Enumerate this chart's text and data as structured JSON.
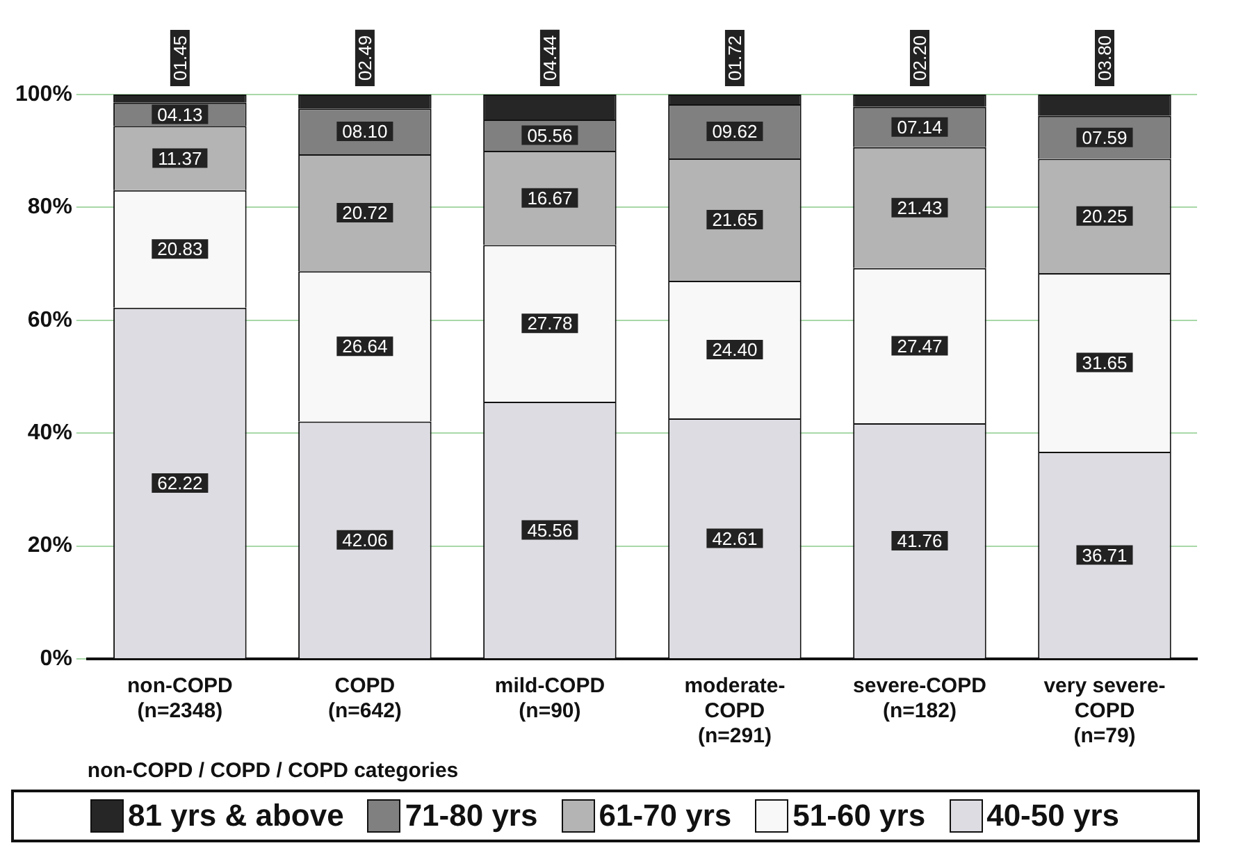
{
  "chart_data": {
    "type": "bar",
    "stacked": true,
    "xlabel": "non-COPD / COPD / COPD categories",
    "categories": [
      "non-COPD\n(n=2348)",
      "COPD\n(n=642)",
      "mild-COPD\n(n=90)",
      "moderate-\nCOPD\n(n=291)",
      "severe-COPD\n(n=182)",
      "very severe-\nCOPD\n(n=79)"
    ],
    "series": [
      {
        "name": "40-50 yrs",
        "color": "#dcdce2",
        "values": [
          62.22,
          42.06,
          45.56,
          42.61,
          41.76,
          36.71
        ],
        "value_labels": [
          "62.22",
          "42.06",
          "45.56",
          "42.61",
          "41.76",
          "36.71"
        ]
      },
      {
        "name": "51-60 yrs",
        "color": "#f8f8f8",
        "values": [
          20.83,
          26.64,
          27.78,
          24.4,
          27.47,
          31.65
        ],
        "value_labels": [
          "20.83",
          "26.64",
          "27.78",
          "24.40",
          "27.47",
          "31.65"
        ]
      },
      {
        "name": "61-70 yrs",
        "color": "#b4b4b4",
        "values": [
          11.37,
          20.72,
          16.67,
          21.65,
          21.43,
          20.25
        ],
        "value_labels": [
          "11.37",
          "20.72",
          "16.67",
          "21.65",
          "21.43",
          "20.25"
        ]
      },
      {
        "name": "71-80 yrs",
        "color": "#808080",
        "values": [
          4.13,
          8.1,
          5.56,
          9.62,
          7.14,
          7.59
        ],
        "value_labels": [
          "04.13",
          "08.10",
          "05.56",
          "09.62",
          "07.14",
          "07.59"
        ]
      },
      {
        "name": "81 yrs & above",
        "color": "#262626",
        "values": [
          1.45,
          2.49,
          4.44,
          1.72,
          2.2,
          3.8
        ],
        "value_labels": [
          "01.45",
          "02.49",
          "04.44",
          "01.72",
          "02.20",
          "03.80"
        ]
      }
    ],
    "ylim": [
      0,
      100
    ],
    "yticks": [
      {
        "value": 0,
        "label": "0%"
      },
      {
        "value": 20,
        "label": "20%"
      },
      {
        "value": 40,
        "label": "40%"
      },
      {
        "value": 60,
        "label": "60%"
      },
      {
        "value": 80,
        "label": "80%"
      },
      {
        "value": 100,
        "label": "100%"
      }
    ],
    "grid": "y",
    "legend": "bottom"
  }
}
